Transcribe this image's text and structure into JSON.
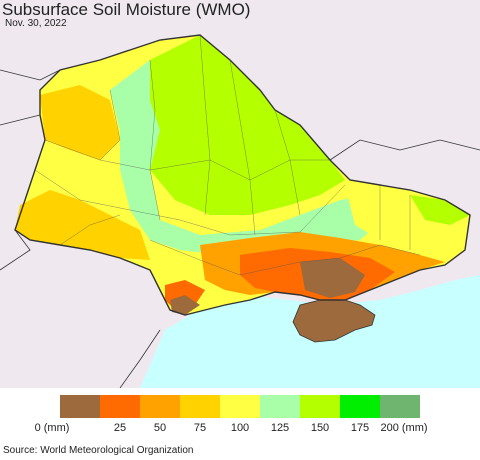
{
  "header": {
    "title": "Subsurface Soil Moisture (WMO)",
    "date": "Nov. 30, 2022"
  },
  "legend": {
    "colors": [
      "#9c6a3c",
      "#ff6b00",
      "#ffa200",
      "#ffd200",
      "#ffff44",
      "#a8ffa8",
      "#b4ff00",
      "#00ee00",
      "#6fb46f"
    ],
    "ticks": [
      "0 (mm)",
      "25",
      "50",
      "75",
      "100",
      "125",
      "150",
      "175",
      "200 (mm)"
    ]
  },
  "map": {
    "colors": {
      "neighbor_land": "#efe9ef",
      "sea": "#c8ffff",
      "border": "#333333",
      "dark_green": "#b4ff00",
      "light_green": "#a8ffa8",
      "yellow": "#ffff44",
      "gold": "#ffd200",
      "orange": "#ffa200",
      "red_orange": "#ff6b00",
      "brown": "#9c6a3c"
    }
  },
  "footer": {
    "source": "Source: World Meteorological Organization"
  }
}
